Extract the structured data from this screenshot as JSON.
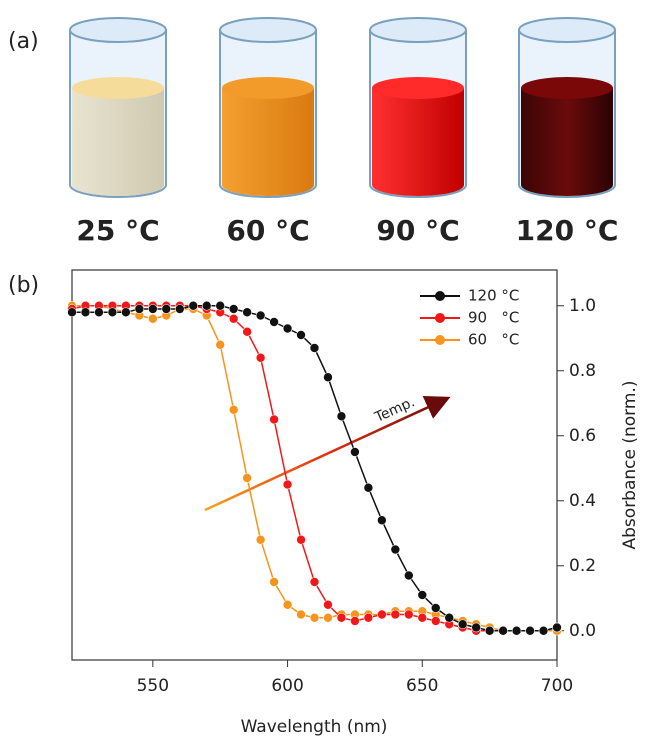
{
  "panel_a": {
    "label": "(a)",
    "labels": [
      "25 °C",
      "60 °C",
      "90 °C",
      "120 °C"
    ]
  },
  "panel_b_label": "(b)",
  "chart_data": {
    "type": "line",
    "x_label": "Wavelength (nm)",
    "y_label": "Absorbance (norm.)",
    "annotation": "Temp.",
    "x": [
      520,
      525,
      530,
      535,
      540,
      545,
      550,
      555,
      560,
      565,
      570,
      575,
      580,
      585,
      590,
      595,
      600,
      605,
      610,
      615,
      620,
      625,
      630,
      635,
      640,
      645,
      650,
      655,
      660,
      665,
      670,
      675,
      680,
      685,
      690,
      695,
      700
    ],
    "series": [
      {
        "name": "120 °C",
        "color": "#111111",
        "values": [
          0.98,
          0.98,
          0.98,
          0.98,
          0.98,
          0.99,
          0.99,
          0.99,
          0.99,
          1.0,
          1.0,
          1.0,
          0.99,
          0.98,
          0.97,
          0.95,
          0.93,
          0.91,
          0.87,
          0.78,
          0.66,
          0.55,
          0.44,
          0.34,
          0.25,
          0.17,
          0.11,
          0.07,
          0.04,
          0.02,
          0.01,
          0.0,
          0.0,
          0.0,
          0.0,
          0.0,
          0.01
        ]
      },
      {
        "name": "90   °C",
        "color": "#f01818",
        "values": [
          0.99,
          1.0,
          1.0,
          1.0,
          1.0,
          1.0,
          1.0,
          1.0,
          1.0,
          1.0,
          0.99,
          0.98,
          0.96,
          0.92,
          0.84,
          0.65,
          0.45,
          0.28,
          0.15,
          0.08,
          0.04,
          0.03,
          0.04,
          0.05,
          0.05,
          0.05,
          0.04,
          0.03,
          0.02,
          0.01,
          0.0,
          0.0,
          0.0,
          0.0,
          0.0,
          0.0,
          0.01
        ]
      },
      {
        "name": "60   °C",
        "color": "#f7941d",
        "values": [
          1.0,
          1.0,
          1.0,
          0.99,
          0.98,
          0.97,
          0.96,
          0.97,
          0.99,
          0.99,
          0.97,
          0.88,
          0.68,
          0.47,
          0.28,
          0.15,
          0.08,
          0.05,
          0.04,
          0.04,
          0.05,
          0.05,
          0.05,
          0.05,
          0.06,
          0.06,
          0.06,
          0.05,
          0.04,
          0.03,
          0.02,
          0.01,
          0.0,
          0.0,
          0.0,
          0.0,
          0.0
        ]
      }
    ],
    "xlim": [
      520,
      700
    ],
    "xticks": [
      550,
      600,
      650,
      700
    ],
    "ylim": [
      -0.09,
      1.11
    ],
    "yticks": [
      {
        "value": 0,
        "label": "0.0"
      },
      {
        "value": 0.2,
        "label": "0.2"
      },
      {
        "value": 0.4,
        "label": "0.4"
      },
      {
        "value": 0.6,
        "label": "0.6"
      },
      {
        "value": 0.8,
        "label": "0.8"
      },
      {
        "value": 1.0,
        "label": "1.0"
      }
    ],
    "legend": "upper right"
  }
}
